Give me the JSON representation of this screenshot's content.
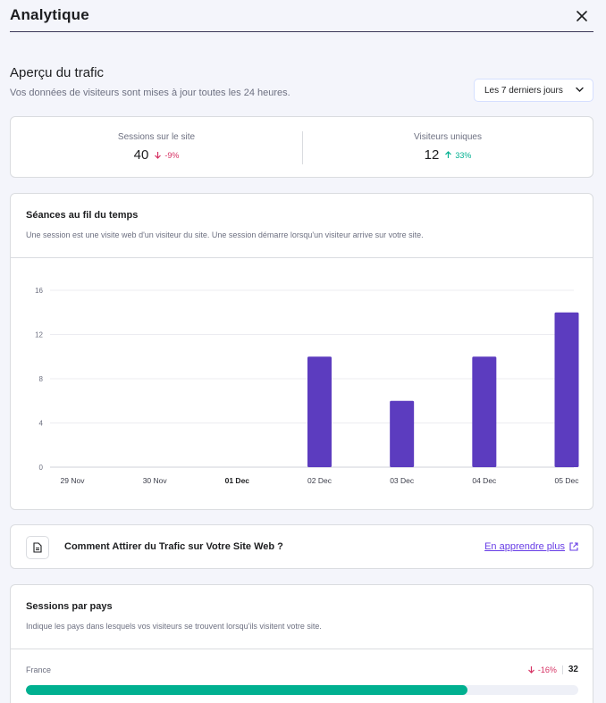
{
  "header": {
    "title": "Analytique",
    "close_icon": "close-icon"
  },
  "overview": {
    "title": "Aperçu du trafic",
    "subtitle": "Vos données de visiteurs sont mises à jour toutes les 24 heures.",
    "range_select": {
      "value": "Les 7 derniers jours",
      "icon": "chevron-down-icon"
    }
  },
  "kpis": [
    {
      "label": "Sessions sur le site",
      "value": "40",
      "delta": "-9%",
      "direction": "down"
    },
    {
      "label": "Visiteurs uniques",
      "value": "12",
      "delta": "33%",
      "direction": "up"
    }
  ],
  "sessions_chart": {
    "title": "Séances au fil du temps",
    "subtitle": "Une session est une visite web d'un visiteur du site. Une session démarre lorsqu'un visiteur arrive sur votre site."
  },
  "chart_data": {
    "type": "bar",
    "categories": [
      "29 Nov",
      "30 Nov",
      "01 Dec",
      "02 Dec",
      "03 Dec",
      "04 Dec",
      "05 Dec"
    ],
    "bold_category": "01 Dec",
    "values": [
      0,
      0,
      0,
      10,
      6,
      10,
      14
    ],
    "ylim": [
      0,
      16
    ],
    "yticks": [
      0,
      4,
      8,
      12,
      16
    ],
    "grid": true,
    "bar_color": "#5c3cbf",
    "title": "",
    "xlabel": "",
    "ylabel": ""
  },
  "learn": {
    "title": "Comment Attirer du Trafic sur Votre Site Web ?",
    "link": "En apprendre plus",
    "icons": [
      "document-icon",
      "external-link-icon"
    ]
  },
  "countries": {
    "title": "Sessions par pays",
    "subtitle": "Indique les pays dans lesquels vos visiteurs se trouvent lorsqu'ils visitent votre site.",
    "items": [
      {
        "name": "France",
        "delta": "-16%",
        "direction": "down",
        "count": "32",
        "share": 0.8
      }
    ]
  },
  "colors": {
    "accent": "#673de6",
    "positive": "#00b090",
    "negative": "#d63163",
    "bar": "#5c3cbf"
  }
}
